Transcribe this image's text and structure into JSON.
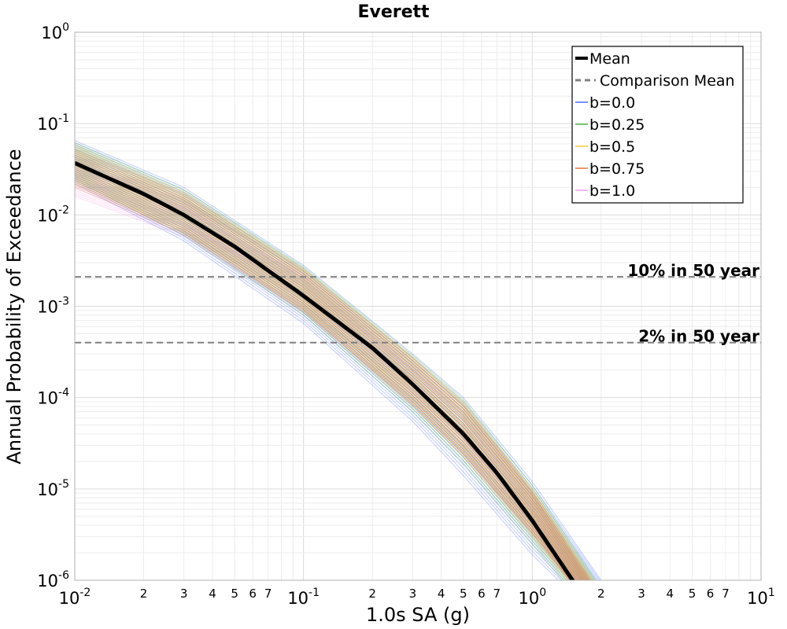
{
  "chart_data": {
    "type": "line",
    "title": "Everett",
    "xlabel": "1.0s SA (g)",
    "ylabel": "Annual Probability of Exceedance",
    "x_scale": "log",
    "y_scale": "log",
    "xlim": [
      0.01,
      10
    ],
    "ylim": [
      1e-06,
      1
    ],
    "grid": true,
    "legend_position": "top-right",
    "x_major_ticks": [
      {
        "value": 0.01,
        "base": "10",
        "exp": "-2"
      },
      {
        "value": 0.1,
        "base": "10",
        "exp": "-1"
      },
      {
        "value": 1,
        "base": "10",
        "exp": "0"
      },
      {
        "value": 10,
        "base": "10",
        "exp": "1"
      }
    ],
    "y_major_ticks": [
      {
        "value": 1e-06,
        "base": "10",
        "exp": "-6"
      },
      {
        "value": 1e-05,
        "base": "10",
        "exp": "-5"
      },
      {
        "value": 0.0001,
        "base": "10",
        "exp": "-4"
      },
      {
        "value": 0.001,
        "base": "10",
        "exp": "-3"
      },
      {
        "value": 0.01,
        "base": "10",
        "exp": "-2"
      },
      {
        "value": 0.1,
        "base": "10",
        "exp": "-1"
      },
      {
        "value": 1,
        "base": "10",
        "exp": "0"
      }
    ],
    "x_minor_tick_labels": [
      "2",
      "3",
      "4",
      "5",
      "6",
      "7"
    ],
    "legend": [
      {
        "label": "Mean",
        "color": "#000000",
        "style": "solid-thick"
      },
      {
        "label": "Comparison Mean",
        "color": "#808080",
        "style": "dashed"
      },
      {
        "label": "b=0.0",
        "color": "#3355ff",
        "style": "solid"
      },
      {
        "label": "b=0.25",
        "color": "#2ca02c",
        "style": "solid"
      },
      {
        "label": "b=0.5",
        "color": "#f0c020",
        "style": "solid"
      },
      {
        "label": "b=0.75",
        "color": "#e8601c",
        "style": "solid"
      },
      {
        "label": "b=1.0",
        "color": "#f08fe0",
        "style": "solid"
      }
    ],
    "reference_lines": [
      {
        "label": "10% in 50 year",
        "y": 0.0021
      },
      {
        "label": "2% in 50 year",
        "y": 0.0004
      }
    ],
    "series": [
      {
        "name": "Mean",
        "x": [
          0.01,
          0.02,
          0.03,
          0.05,
          0.1,
          0.2,
          0.3,
          0.5,
          0.7,
          1.0,
          1.5
        ],
        "y": [
          0.037,
          0.017,
          0.01,
          0.0045,
          0.0013,
          0.00035,
          0.00014,
          4e-05,
          1.5e-05,
          4.5e-06,
          1e-06
        ]
      }
    ],
    "band_envelopes": {
      "b=0.0": {
        "upper": [
          [
            0.01,
            0.065
          ],
          [
            0.03,
            0.02
          ],
          [
            0.1,
            0.0028
          ],
          [
            0.3,
            0.0003
          ],
          [
            0.5,
            0.0001
          ],
          [
            1.0,
            1.2e-05
          ],
          [
            2.0,
            1e-06
          ]
        ],
        "lower": [
          [
            0.01,
            0.022
          ],
          [
            0.03,
            0.0052
          ],
          [
            0.1,
            0.00065
          ],
          [
            0.3,
            5.5e-05
          ],
          [
            0.5,
            1.4e-05
          ],
          [
            1.0,
            1.9e-06
          ],
          [
            1.3,
            1e-06
          ]
        ]
      },
      "b=0.25": {
        "upper": [
          [
            0.01,
            0.062
          ],
          [
            0.03,
            0.019
          ],
          [
            0.1,
            0.0027
          ],
          [
            0.3,
            0.00029
          ],
          [
            0.5,
            9.5e-05
          ],
          [
            1.0,
            1.1e-05
          ],
          [
            1.9,
            1e-06
          ]
        ],
        "lower": [
          [
            0.01,
            0.024
          ],
          [
            0.03,
            0.006
          ],
          [
            0.1,
            0.0008
          ],
          [
            0.3,
            7e-05
          ],
          [
            0.5,
            1.9e-05
          ],
          [
            1.0,
            2.5e-06
          ],
          [
            1.35,
            1e-06
          ]
        ]
      },
      "b=0.5": {
        "upper": [
          [
            0.01,
            0.058
          ],
          [
            0.03,
            0.018
          ],
          [
            0.1,
            0.0026
          ],
          [
            0.3,
            0.00028
          ],
          [
            0.5,
            9e-05
          ],
          [
            1.0,
            1e-05
          ],
          [
            1.85,
            1e-06
          ]
        ],
        "lower": [
          [
            0.01,
            0.022
          ],
          [
            0.03,
            0.0065
          ],
          [
            0.1,
            0.0009
          ],
          [
            0.3,
            8e-05
          ],
          [
            0.5,
            2.2e-05
          ],
          [
            1.0,
            3e-06
          ],
          [
            1.4,
            1e-06
          ]
        ]
      },
      "b=0.75": {
        "upper": [
          [
            0.01,
            0.052
          ],
          [
            0.03,
            0.017
          ],
          [
            0.1,
            0.0025
          ],
          [
            0.3,
            0.00027
          ],
          [
            0.5,
            8.5e-05
          ],
          [
            1.0,
            9.5e-06
          ],
          [
            1.8,
            1e-06
          ]
        ],
        "lower": [
          [
            0.01,
            0.02
          ],
          [
            0.03,
            0.0062
          ],
          [
            0.1,
            0.00088
          ],
          [
            0.3,
            8.5e-05
          ],
          [
            0.5,
            2.4e-05
          ],
          [
            1.0,
            3.3e-06
          ],
          [
            1.45,
            1e-06
          ]
        ]
      },
      "b=1.0": {
        "upper": [
          [
            0.01,
            0.045
          ],
          [
            0.03,
            0.015
          ],
          [
            0.1,
            0.0023
          ],
          [
            0.3,
            0.00025
          ],
          [
            0.5,
            8e-05
          ],
          [
            1.0,
            9e-06
          ],
          [
            1.75,
            1e-06
          ]
        ],
        "lower": [
          [
            0.01,
            0.016
          ],
          [
            0.03,
            0.0058
          ],
          [
            0.1,
            0.00085
          ],
          [
            0.3,
            8e-05
          ],
          [
            0.5,
            2.3e-05
          ],
          [
            1.0,
            3.2e-06
          ],
          [
            1.45,
            1e-06
          ]
        ]
      }
    }
  }
}
